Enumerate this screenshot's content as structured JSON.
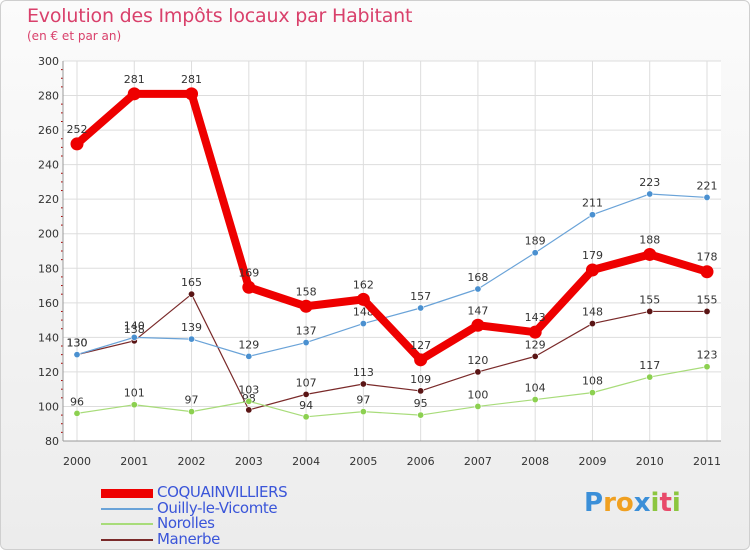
{
  "title": "Evolution des Impôts locaux par Habitant",
  "subtitle": "(en € et par an)",
  "logo": {
    "text": [
      "P",
      "r",
      "o",
      "x",
      "i",
      "t",
      "i"
    ],
    "colors": [
      "#3b8fd8",
      "#f0a020",
      "#f0a020",
      "#3b8fd8",
      "#8cc63f",
      "#e84a6a",
      "#8cc63f"
    ]
  },
  "chart_data": {
    "type": "line",
    "title": "Evolution des Impôts locaux par Habitant",
    "subtitle": "(en € et par an)",
    "x": [
      "2000",
      "2001",
      "2002",
      "2003",
      "2004",
      "2005",
      "2006",
      "2007",
      "2008",
      "2009",
      "2010",
      "2011"
    ],
    "ylim": [
      80,
      300
    ],
    "yticks": [
      80,
      100,
      120,
      140,
      160,
      180,
      200,
      220,
      240,
      260,
      280,
      300
    ],
    "grid": true,
    "legend_position": "bottom-left",
    "series": [
      {
        "name": "Manerbe",
        "color": "#7a2a2a",
        "marker": "#5a1515",
        "width": 1.2,
        "values": [
          130,
          138,
          165,
          98,
          107,
          113,
          109,
          120,
          129,
          148,
          155,
          155
        ]
      },
      {
        "name": "Norolles",
        "color": "#a8dc7a",
        "marker": "#8cd050",
        "width": 1.2,
        "values": [
          96,
          101,
          97,
          103,
          94,
          97,
          95,
          100,
          104,
          108,
          117,
          123
        ]
      },
      {
        "name": "Ouilly-le-Vicomte",
        "color": "#6aa3d8",
        "marker": "#4a90d0",
        "width": 1.2,
        "values": [
          130,
          140,
          139,
          129,
          137,
          148,
          157,
          168,
          189,
          211,
          223,
          221
        ]
      },
      {
        "name": "COQUAINVILLIERS",
        "color": "#ee0000",
        "marker": "#ee0000",
        "width": 8,
        "values": [
          252,
          281,
          281,
          169,
          158,
          162,
          127,
          147,
          143,
          179,
          188,
          178
        ]
      }
    ],
    "legend": [
      {
        "name": "COQUAINVILLIERS",
        "color": "#ee0000",
        "thick": true
      },
      {
        "name": "Ouilly-le-Vicomte",
        "color": "#6aa3d8",
        "thick": false
      },
      {
        "name": "Norolles",
        "color": "#a8dc7a",
        "thick": false
      },
      {
        "name": "Manerbe",
        "color": "#7a2a2a",
        "thick": false
      }
    ]
  }
}
